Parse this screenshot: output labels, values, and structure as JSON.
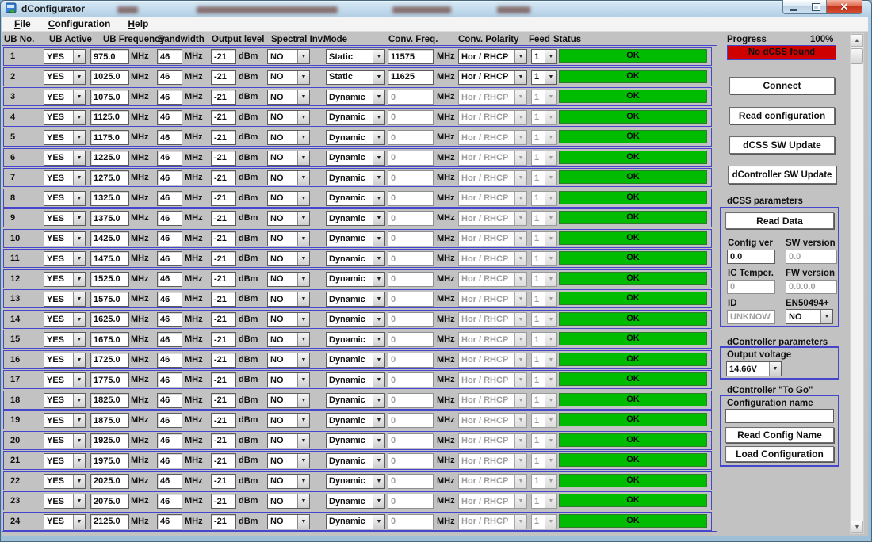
{
  "window": {
    "title": "dConfigurator"
  },
  "menu": {
    "items": [
      "File",
      "Configuration",
      "Help"
    ]
  },
  "table": {
    "headers": [
      "UB No.",
      "UB Active",
      "UB Frequency",
      "Bandwidth",
      "Output level",
      "Spectral Inv.",
      "Mode",
      "Conv. Freq.",
      "Conv. Polarity",
      "Feed",
      "Status"
    ],
    "unit_mhz": "MHz",
    "unit_dbm": "dBm",
    "rows": [
      {
        "no": "1",
        "active": "YES",
        "freq": "975.0",
        "bw": "46",
        "level": "-21",
        "spectral": "NO",
        "mode": "Static",
        "conv_freq": "11575",
        "polarity": "Hor / RHCP",
        "feed": "1",
        "status": "OK",
        "enabled": true,
        "caret": false
      },
      {
        "no": "2",
        "active": "YES",
        "freq": "1025.0",
        "bw": "46",
        "level": "-21",
        "spectral": "NO",
        "mode": "Static",
        "conv_freq": "11625",
        "polarity": "Hor / RHCP",
        "feed": "1",
        "status": "OK",
        "enabled": true,
        "caret": true
      },
      {
        "no": "3",
        "active": "YES",
        "freq": "1075.0",
        "bw": "46",
        "level": "-21",
        "spectral": "NO",
        "mode": "Dynamic",
        "conv_freq": "0",
        "polarity": "Hor / RHCP",
        "feed": "1",
        "status": "OK",
        "enabled": false,
        "caret": false
      },
      {
        "no": "4",
        "active": "YES",
        "freq": "1125.0",
        "bw": "46",
        "level": "-21",
        "spectral": "NO",
        "mode": "Dynamic",
        "conv_freq": "0",
        "polarity": "Hor / RHCP",
        "feed": "1",
        "status": "OK",
        "enabled": false,
        "caret": false
      },
      {
        "no": "5",
        "active": "YES",
        "freq": "1175.0",
        "bw": "46",
        "level": "-21",
        "spectral": "NO",
        "mode": "Dynamic",
        "conv_freq": "0",
        "polarity": "Hor / RHCP",
        "feed": "1",
        "status": "OK",
        "enabled": false,
        "caret": false
      },
      {
        "no": "6",
        "active": "YES",
        "freq": "1225.0",
        "bw": "46",
        "level": "-21",
        "spectral": "NO",
        "mode": "Dynamic",
        "conv_freq": "0",
        "polarity": "Hor / RHCP",
        "feed": "1",
        "status": "OK",
        "enabled": false,
        "caret": false
      },
      {
        "no": "7",
        "active": "YES",
        "freq": "1275.0",
        "bw": "46",
        "level": "-21",
        "spectral": "NO",
        "mode": "Dynamic",
        "conv_freq": "0",
        "polarity": "Hor / RHCP",
        "feed": "1",
        "status": "OK",
        "enabled": false,
        "caret": false
      },
      {
        "no": "8",
        "active": "YES",
        "freq": "1325.0",
        "bw": "46",
        "level": "-21",
        "spectral": "NO",
        "mode": "Dynamic",
        "conv_freq": "0",
        "polarity": "Hor / RHCP",
        "feed": "1",
        "status": "OK",
        "enabled": false,
        "caret": false
      },
      {
        "no": "9",
        "active": "YES",
        "freq": "1375.0",
        "bw": "46",
        "level": "-21",
        "spectral": "NO",
        "mode": "Dynamic",
        "conv_freq": "0",
        "polarity": "Hor / RHCP",
        "feed": "1",
        "status": "OK",
        "enabled": false,
        "caret": false
      },
      {
        "no": "10",
        "active": "YES",
        "freq": "1425.0",
        "bw": "46",
        "level": "-21",
        "spectral": "NO",
        "mode": "Dynamic",
        "conv_freq": "0",
        "polarity": "Hor / RHCP",
        "feed": "1",
        "status": "OK",
        "enabled": false,
        "caret": false
      },
      {
        "no": "11",
        "active": "YES",
        "freq": "1475.0",
        "bw": "46",
        "level": "-21",
        "spectral": "NO",
        "mode": "Dynamic",
        "conv_freq": "0",
        "polarity": "Hor / RHCP",
        "feed": "1",
        "status": "OK",
        "enabled": false,
        "caret": false
      },
      {
        "no": "12",
        "active": "YES",
        "freq": "1525.0",
        "bw": "46",
        "level": "-21",
        "spectral": "NO",
        "mode": "Dynamic",
        "conv_freq": "0",
        "polarity": "Hor / RHCP",
        "feed": "1",
        "status": "OK",
        "enabled": false,
        "caret": false
      },
      {
        "no": "13",
        "active": "YES",
        "freq": "1575.0",
        "bw": "46",
        "level": "-21",
        "spectral": "NO",
        "mode": "Dynamic",
        "conv_freq": "0",
        "polarity": "Hor / RHCP",
        "feed": "1",
        "status": "OK",
        "enabled": false,
        "caret": false
      },
      {
        "no": "14",
        "active": "YES",
        "freq": "1625.0",
        "bw": "46",
        "level": "-21",
        "spectral": "NO",
        "mode": "Dynamic",
        "conv_freq": "0",
        "polarity": "Hor / RHCP",
        "feed": "1",
        "status": "OK",
        "enabled": false,
        "caret": false
      },
      {
        "no": "15",
        "active": "YES",
        "freq": "1675.0",
        "bw": "46",
        "level": "-21",
        "spectral": "NO",
        "mode": "Dynamic",
        "conv_freq": "0",
        "polarity": "Hor / RHCP",
        "feed": "1",
        "status": "OK",
        "enabled": false,
        "caret": false
      },
      {
        "no": "16",
        "active": "YES",
        "freq": "1725.0",
        "bw": "46",
        "level": "-21",
        "spectral": "NO",
        "mode": "Dynamic",
        "conv_freq": "0",
        "polarity": "Hor / RHCP",
        "feed": "1",
        "status": "OK",
        "enabled": false,
        "caret": false
      },
      {
        "no": "17",
        "active": "YES",
        "freq": "1775.0",
        "bw": "46",
        "level": "-21",
        "spectral": "NO",
        "mode": "Dynamic",
        "conv_freq": "0",
        "polarity": "Hor / RHCP",
        "feed": "1",
        "status": "OK",
        "enabled": false,
        "caret": false
      },
      {
        "no": "18",
        "active": "YES",
        "freq": "1825.0",
        "bw": "46",
        "level": "-21",
        "spectral": "NO",
        "mode": "Dynamic",
        "conv_freq": "0",
        "polarity": "Hor / RHCP",
        "feed": "1",
        "status": "OK",
        "enabled": false,
        "caret": false
      },
      {
        "no": "19",
        "active": "YES",
        "freq": "1875.0",
        "bw": "46",
        "level": "-21",
        "spectral": "NO",
        "mode": "Dynamic",
        "conv_freq": "0",
        "polarity": "Hor / RHCP",
        "feed": "1",
        "status": "OK",
        "enabled": false,
        "caret": false
      },
      {
        "no": "20",
        "active": "YES",
        "freq": "1925.0",
        "bw": "46",
        "level": "-21",
        "spectral": "NO",
        "mode": "Dynamic",
        "conv_freq": "0",
        "polarity": "Hor / RHCP",
        "feed": "1",
        "status": "OK",
        "enabled": false,
        "caret": false
      },
      {
        "no": "21",
        "active": "YES",
        "freq": "1975.0",
        "bw": "46",
        "level": "-21",
        "spectral": "NO",
        "mode": "Dynamic",
        "conv_freq": "0",
        "polarity": "Hor / RHCP",
        "feed": "1",
        "status": "OK",
        "enabled": false,
        "caret": false
      },
      {
        "no": "22",
        "active": "YES",
        "freq": "2025.0",
        "bw": "46",
        "level": "-21",
        "spectral": "NO",
        "mode": "Dynamic",
        "conv_freq": "0",
        "polarity": "Hor / RHCP",
        "feed": "1",
        "status": "OK",
        "enabled": false,
        "caret": false
      },
      {
        "no": "23",
        "active": "YES",
        "freq": "2075.0",
        "bw": "46",
        "level": "-21",
        "spectral": "NO",
        "mode": "Dynamic",
        "conv_freq": "0",
        "polarity": "Hor / RHCP",
        "feed": "1",
        "status": "OK",
        "enabled": false,
        "caret": false
      },
      {
        "no": "24",
        "active": "YES",
        "freq": "2125.0",
        "bw": "46",
        "level": "-21",
        "spectral": "NO",
        "mode": "Dynamic",
        "conv_freq": "0",
        "polarity": "Hor / RHCP",
        "feed": "1",
        "status": "OK",
        "enabled": false,
        "caret": false
      }
    ]
  },
  "right_panel": {
    "progress_label": "Progress",
    "progress_value": "100%",
    "alert": "No dCSS found",
    "connect": "Connect",
    "read_configuration": "Read configuration",
    "dcss_sw_update": "dCSS SW Update",
    "dcontroller_sw_update": "dController SW Update",
    "dcss": {
      "title": "dCSS parameters",
      "read_data": "Read Data",
      "config_ver_label": "Config ver",
      "config_ver": "0.0",
      "sw_version_label": "SW version",
      "sw_version": "0.0",
      "ic_temper_label": "IC Temper.",
      "ic_temper": "0",
      "fw_version_label": "FW version",
      "fw_version": "0.0.0.0",
      "id_label": "ID",
      "id": "UNKNOW",
      "en50494_label": "EN50494+",
      "en50494": "NO"
    },
    "dcontroller": {
      "title": "dController parameters",
      "output_voltage_label": "Output voltage",
      "output_voltage": "14.66V"
    },
    "togo": {
      "title": "dController \"To Go\"",
      "config_name_label": "Configuration name",
      "config_name": "",
      "read_config_name": "Read Config Name",
      "load_configuration": "Load Configuration"
    }
  }
}
